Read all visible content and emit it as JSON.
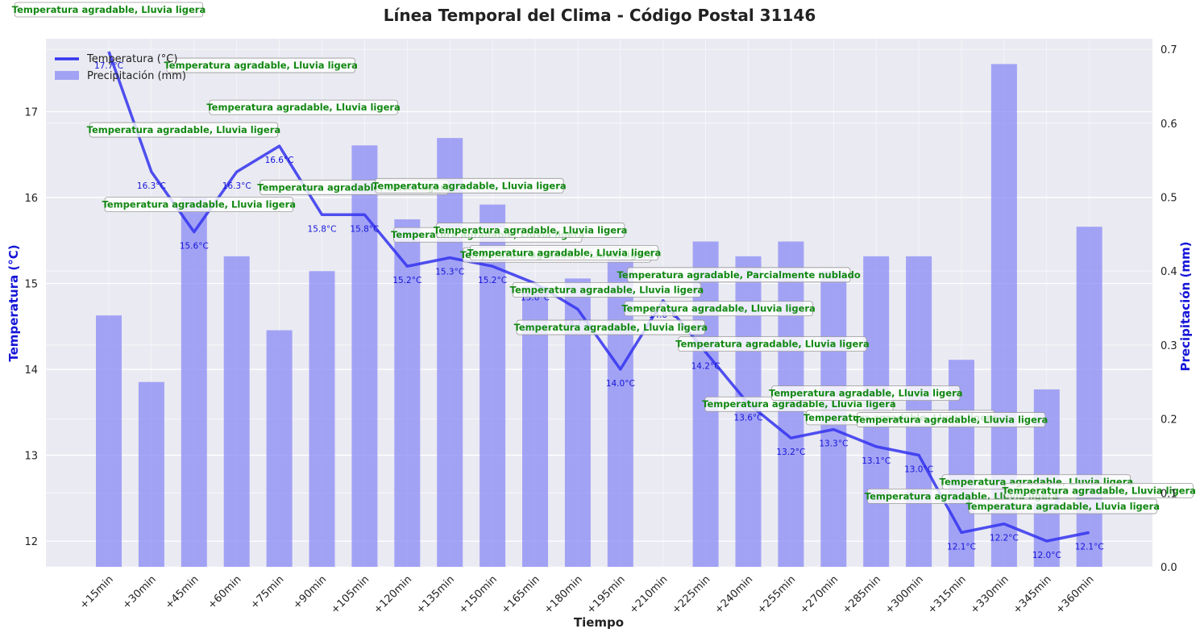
{
  "chart_data": {
    "type": "bar+line",
    "title": "Línea Temporal del Clima - Código Postal 31146",
    "xlabel": "Tiempo",
    "ylabel_left": "Temperatura (°C)",
    "ylabel_right": "Precipitación (mm)",
    "categories": [
      "+15min",
      "+30min",
      "+45min",
      "+60min",
      "+75min",
      "+90min",
      "+105min",
      "+120min",
      "+135min",
      "+150min",
      "+165min",
      "+180min",
      "+195min",
      "+210min",
      "+225min",
      "+240min",
      "+255min",
      "+270min",
      "+285min",
      "+300min",
      "+315min",
      "+330min",
      "+345min",
      "+360min"
    ],
    "ylim_left": [
      11.7,
      17.85
    ],
    "ylim_right": [
      0.0,
      0.7143
    ],
    "yticks_left": [
      12,
      13,
      14,
      15,
      16,
      17
    ],
    "yticks_right": [
      0.0,
      0.1,
      0.2,
      0.3,
      0.4,
      0.5,
      0.6,
      0.7
    ],
    "series": [
      {
        "name": "Temperatura (°C)",
        "kind": "line",
        "axis": "left",
        "color": "#3333ee",
        "values": [
          17.7,
          16.3,
          15.6,
          16.3,
          16.6,
          15.8,
          15.8,
          15.2,
          15.3,
          15.2,
          15.0,
          14.7,
          14.0,
          14.8,
          14.2,
          13.6,
          13.2,
          13.3,
          13.1,
          13.0,
          12.1,
          12.2,
          12.0,
          12.1
        ],
        "value_labels": [
          "17.7°C",
          "16.3°C",
          "15.6°C",
          "16.3°C",
          "16.6°C",
          "15.8°C",
          "15.8°C",
          "15.2°C",
          "15.3°C",
          "15.2°C",
          "15.0°C",
          "14.7°C",
          "14.0°C",
          "14.8°C",
          "14.2°C",
          "13.6°C",
          "13.2°C",
          "13.3°C",
          "13.1°C",
          "13.0°C",
          "12.1°C",
          "12.2°C",
          "12.0°C",
          "12.1°C"
        ]
      },
      {
        "name": "Precipitación (mm)",
        "kind": "bar",
        "axis": "right",
        "color": "#8a8af5",
        "values": [
          0.34,
          0.25,
          0.5,
          0.42,
          0.32,
          0.4,
          0.57,
          0.47,
          0.58,
          0.49,
          0.38,
          0.39,
          0.43,
          0.0,
          0.44,
          0.42,
          0.44,
          0.4,
          0.42,
          0.42,
          0.28,
          0.68,
          0.24,
          0.46
        ]
      }
    ],
    "annotations": [
      "Temperatura agradable, Lluvia ligera",
      "Temperatura agradable, Lluvia ligera",
      "Temperatura agradable, Lluvia ligera",
      "Temperatura agradable, Lluvia ligera",
      "Temperatura agradable, Lluvia ligera",
      "Temperatura agradable, Lluvia ligera",
      "Temperatura agradable, Lluvia ligera",
      "Temperatura agradable, Lluvia ligera",
      "Temperatura agradable, Lluvia ligera",
      "Temperatura agradable, Lluvia ligera",
      "Temperatura agradable, Lluvia ligera",
      "Temperatura agradable, Lluvia ligera",
      "Temperatura agradable, Lluvia ligera",
      "Temperatura agradable, Parcialmente nublado",
      "Temperatura agradable, Lluvia ligera",
      "Temperatura agradable, Lluvia ligera",
      "Temperatura agradable, Lluvia ligera",
      "Temperatura agradable, Lluvia ligera",
      "Temperatura agradable, Lluvia ligera",
      "Temperatura agradable, Lluvia ligera",
      "Temperatura agradable, Lluvia ligera",
      "Temperatura agradable, Lluvia ligera",
      "Temperatura agradable, Lluvia ligera",
      "Temperatura agradable, Lluvia ligera"
    ],
    "legend": "top-left",
    "grid": true
  }
}
